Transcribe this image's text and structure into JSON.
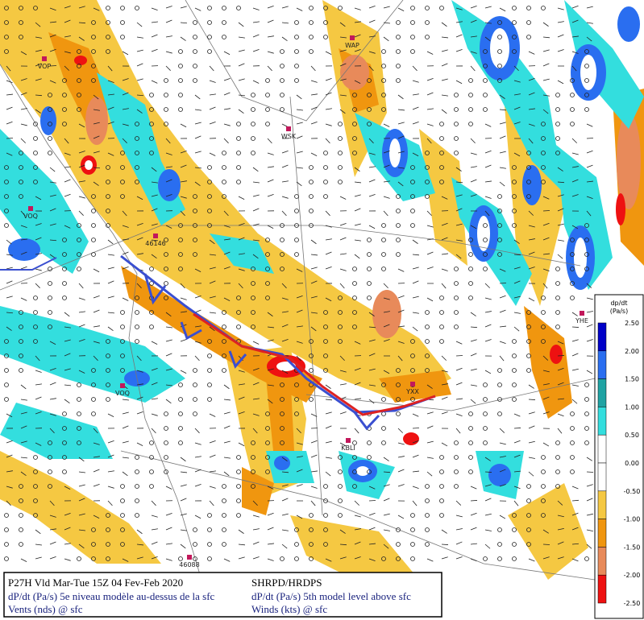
{
  "stations": [
    {
      "label": "VOP"
    },
    {
      "label": "WAP"
    },
    {
      "label": "WSK"
    },
    {
      "label": "VOQ"
    },
    {
      "label": "46146"
    },
    {
      "label": "VOQ"
    },
    {
      "label": "KBLI"
    },
    {
      "label": "YXX"
    },
    {
      "label": "YHE"
    },
    {
      "label": "46088"
    }
  ],
  "legend": {
    "title": "dp/dt",
    "unit": "(Pa/s)",
    "labels": [
      "2.50",
      "2.00",
      "1.50",
      "1.00",
      "0.50",
      "0.00",
      "-0.50",
      "-1.00",
      "-1.50",
      "-2.00",
      "-2.50"
    ],
    "colors": [
      "#0000c8",
      "#2a6ef0",
      "#1fa3a3",
      "#33dede",
      "#ffffff",
      "#ffffff",
      "#f5c842",
      "#f0960f",
      "#e88a5a",
      "#ee1111"
    ]
  },
  "footer": {
    "left": [
      "P27H Vld Mar-Tue 15Z 04 Fev-Feb 2020",
      "dP/dt (Pa/s) 5e niveau modèle au-dessus de la sfc",
      "Vents (nds) @ sfc"
    ],
    "right": [
      "SHRPD/HRDPS",
      "dP/dt (Pa/s) 5th model level above sfc",
      "Winds (kts) @ sfc"
    ]
  }
}
